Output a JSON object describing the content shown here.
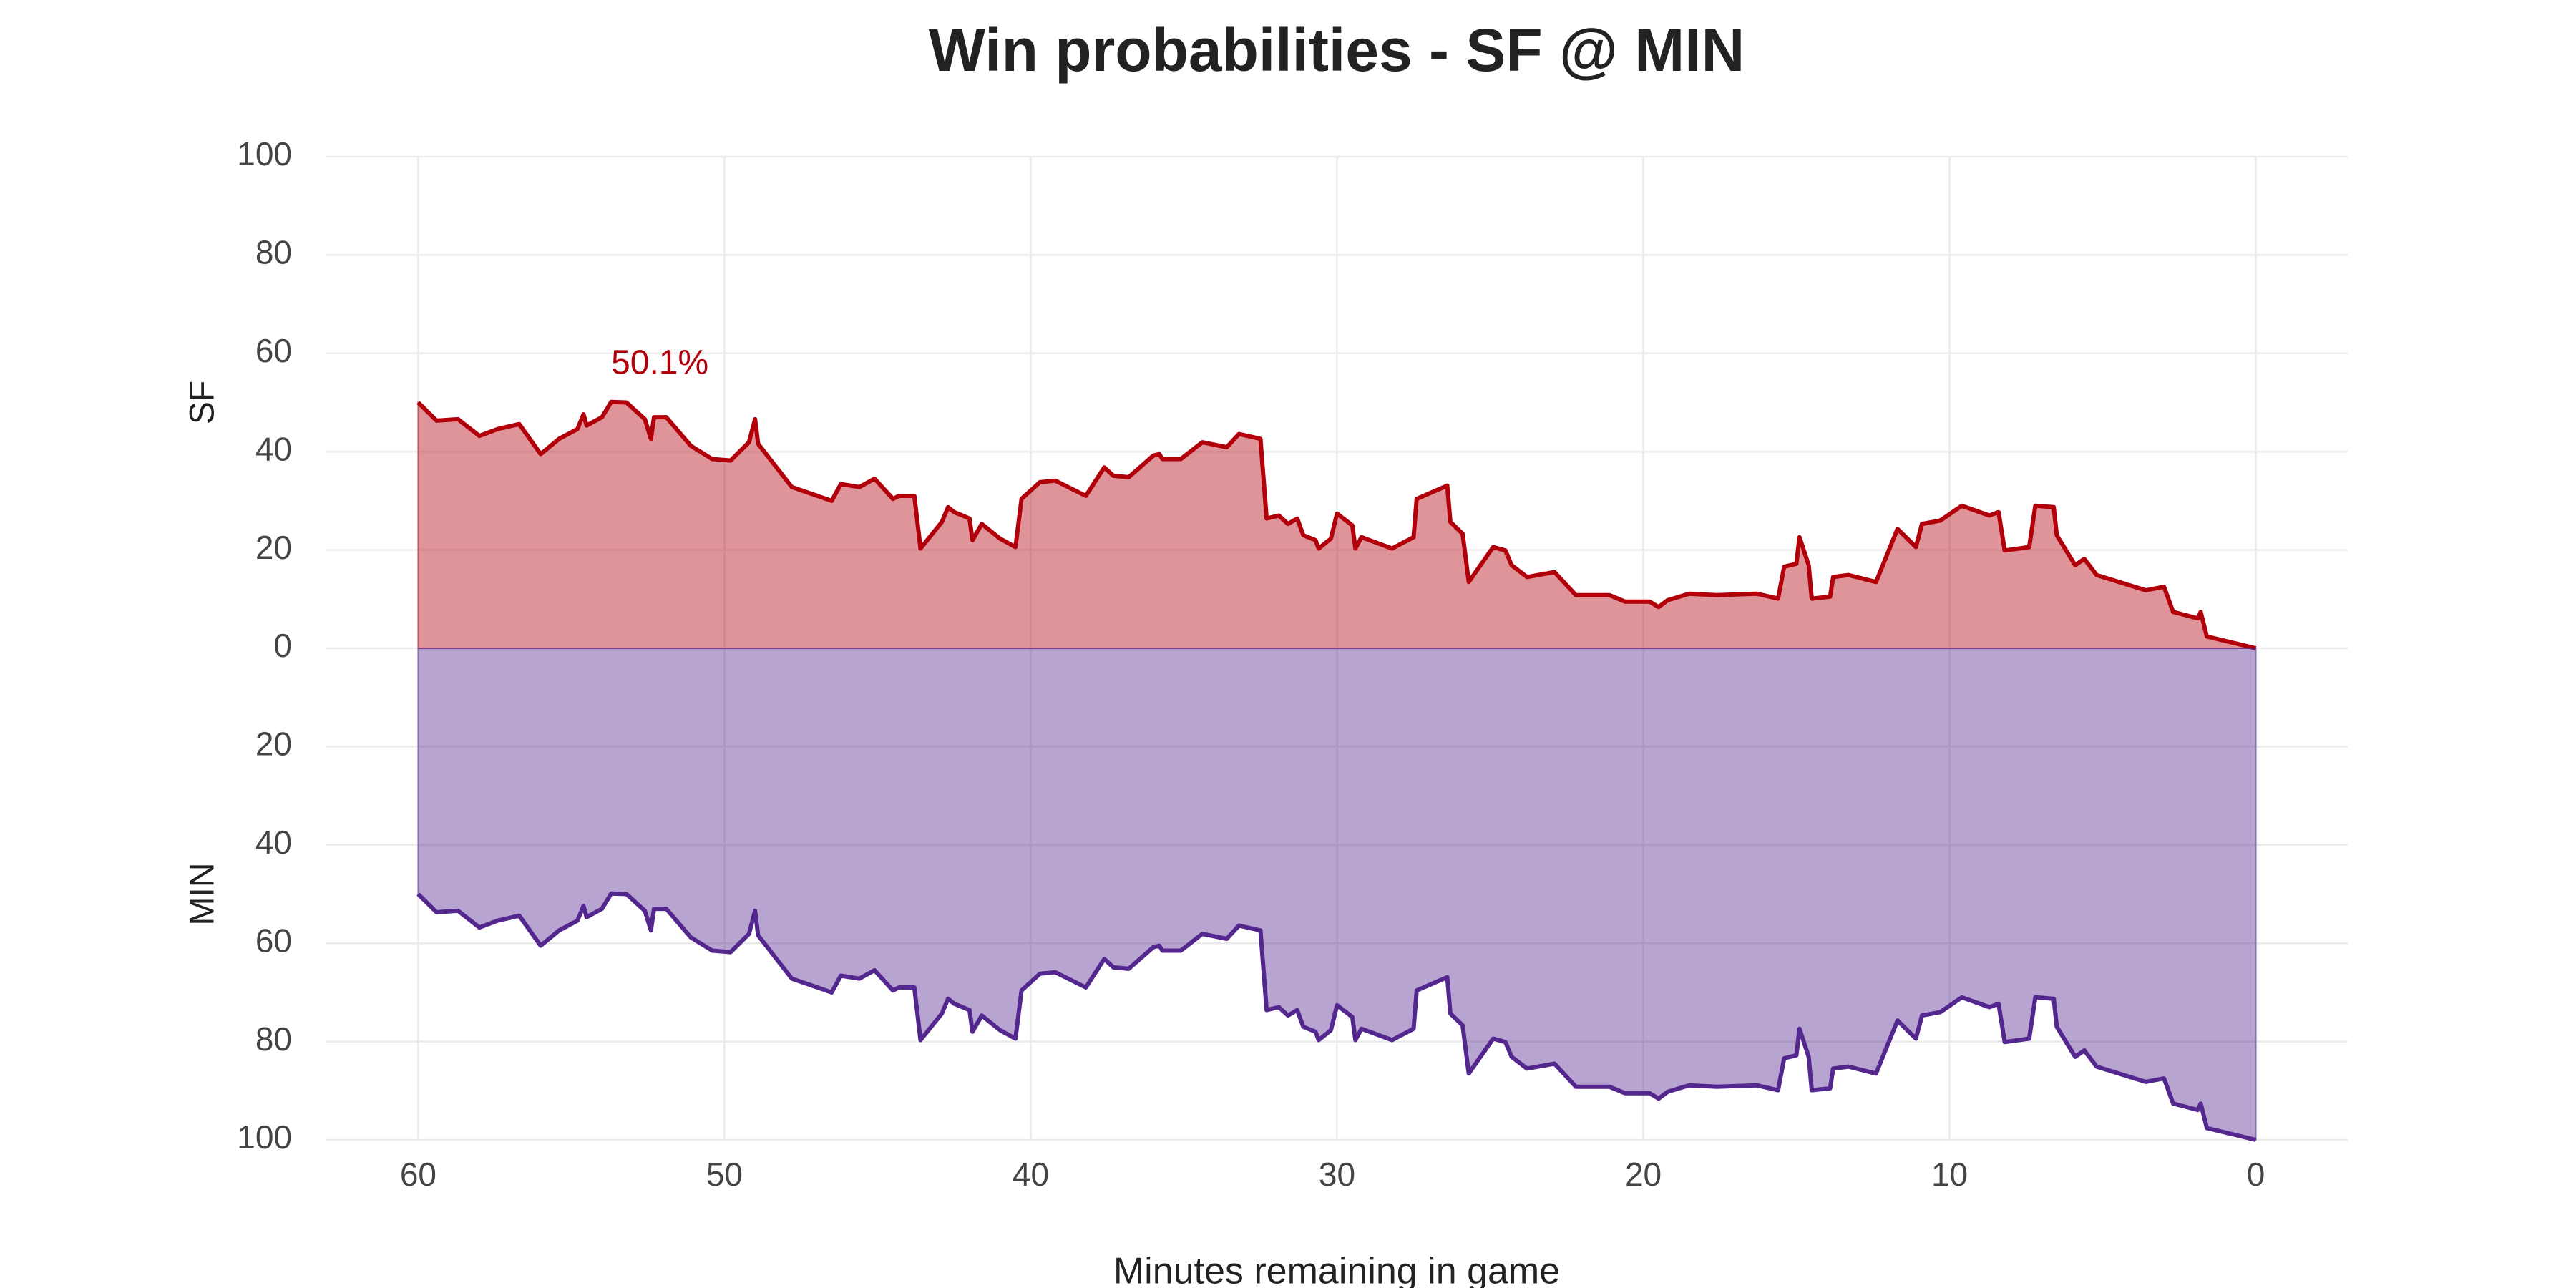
{
  "chart_data": {
    "type": "mirrored-area",
    "title": "Win probabilities - SF @ MIN",
    "xlabel": "Minutes remaining in game",
    "xlim": [
      63,
      -3
    ],
    "xticks": [
      60,
      50,
      40,
      30,
      20,
      10,
      0
    ],
    "ylim": [
      -100,
      100
    ],
    "yticks": [
      {
        "value": -100,
        "label": "100"
      },
      {
        "value": -80,
        "label": "80"
      },
      {
        "value": -60,
        "label": "60"
      },
      {
        "value": -40,
        "label": "40"
      },
      {
        "value": -20,
        "label": "20"
      },
      0,
      20,
      40,
      60,
      80,
      100
    ],
    "grid": true,
    "x": [
      60,
      59.4,
      58.7,
      58.0,
      57.4,
      56.7,
      56.0,
      55.4,
      54.8,
      54.6,
      54.5,
      54.0,
      53.9,
      53.7,
      53.2,
      52.6,
      52.4,
      52.3,
      51.9,
      51.1,
      50.4,
      49.8,
      49.2,
      49.0,
      48.9,
      47.8,
      46.5,
      46.2,
      45.6,
      45.1,
      44.5,
      44.3,
      43.8,
      43.6,
      42.9,
      42.7,
      42.5,
      42.0,
      41.9,
      41.6,
      41.0,
      40.5,
      40.3,
      39.7,
      39.2,
      38.2,
      37.6,
      37.3,
      36.8,
      36.0,
      35.8,
      35.7,
      35.1,
      34.4,
      33.6,
      33.2,
      32.5,
      32.3,
      31.9,
      31.6,
      31.3,
      31.1,
      30.7,
      30.6,
      30.2,
      30.0,
      29.5,
      29.4,
      29.2,
      28.2,
      27.5,
      27.4,
      26.4,
      26.3,
      25.9,
      25.7,
      24.9,
      24.5,
      24.3,
      23.8,
      22.9,
      22.2,
      21.1,
      20.6,
      19.8,
      19.5,
      19.2,
      18.5,
      17.6,
      16.3,
      15.6,
      15.4,
      15.0,
      14.9,
      14.6,
      14.5,
      13.9,
      13.8,
      13.3,
      12.4,
      11.7,
      11.1,
      10.9,
      10.3,
      9.6,
      8.7,
      8.4,
      8.2,
      7.4,
      7.2,
      6.6,
      6.5,
      5.9,
      5.6,
      5.2,
      3.6,
      3.0,
      2.7,
      1.9,
      1.8,
      1.6,
      0
    ],
    "series": [
      {
        "name": "SF",
        "color": "#b2000b",
        "mirrored": false,
        "values": [
          50,
          46.3,
          46.6,
          43.2,
          44.6,
          45.6,
          39.5,
          42.6,
          44.6,
          47.6,
          45.3,
          47,
          48,
          50.1,
          50,
          46.6,
          42.6,
          47,
          47,
          41.2,
          38.5,
          38.2,
          41.9,
          46.6,
          41.6,
          32.8,
          30,
          33.4,
          32.8,
          34.5,
          30.4,
          31,
          31,
          20.3,
          25.7,
          28.7,
          27.7,
          26.4,
          22,
          25.3,
          22.3,
          20.6,
          30.4,
          33.8,
          34.1,
          31,
          36.8,
          35.1,
          34.8,
          39.2,
          39.5,
          38.5,
          38.5,
          41.9,
          40.9,
          43.6,
          42.6,
          26.4,
          27,
          25.3,
          26.4,
          23,
          22,
          20.3,
          22.3,
          27.4,
          25,
          20.3,
          22.6,
          20.3,
          22.6,
          30.4,
          33.1,
          25.7,
          23.3,
          13.5,
          20.6,
          19.9,
          16.9,
          14.5,
          15.5,
          10.8,
          10.8,
          9.5,
          9.5,
          8.4,
          9.8,
          11.1,
          10.8,
          11.1,
          10.1,
          16.6,
          17.2,
          22.6,
          16.9,
          10.1,
          10.5,
          14.5,
          14.9,
          13.5,
          24.3,
          20.6,
          25.3,
          26,
          29,
          27,
          27.7,
          19.9,
          20.6,
          29,
          28.7,
          23,
          16.9,
          18.2,
          14.9,
          11.8,
          12.5,
          7.4,
          6.1,
          7.4,
          2.4,
          0
        ]
      },
      {
        "name": "MIN",
        "color": "#54278f",
        "mirrored": true,
        "values": [
          50,
          53.7,
          53.4,
          56.8,
          55.4,
          54.4,
          60.5,
          57.4,
          55.4,
          52.4,
          54.7,
          53,
          52,
          49.9,
          50,
          53.4,
          57.4,
          53,
          53,
          58.8,
          61.5,
          61.8,
          58.1,
          53.4,
          58.4,
          67.2,
          70,
          66.6,
          67.2,
          65.5,
          69.6,
          69,
          69,
          79.7,
          74.3,
          71.3,
          72.3,
          73.6,
          78,
          74.7,
          77.7,
          79.4,
          69.6,
          66.2,
          65.9,
          69,
          63.2,
          64.9,
          65.2,
          60.8,
          60.5,
          61.5,
          61.5,
          58.1,
          59.1,
          56.4,
          57.4,
          73.6,
          73,
          74.7,
          73.6,
          77,
          78,
          79.7,
          77.7,
          72.6,
          75,
          79.7,
          77.4,
          79.7,
          77.4,
          69.6,
          66.9,
          74.3,
          76.7,
          86.5,
          79.4,
          80.1,
          83.1,
          85.5,
          84.5,
          89.2,
          89.2,
          90.5,
          90.5,
          91.6,
          90.2,
          88.9,
          89.2,
          88.9,
          89.9,
          83.4,
          82.8,
          77.4,
          83.1,
          89.9,
          89.5,
          85.5,
          85.1,
          86.5,
          75.7,
          79.4,
          74.7,
          74,
          71,
          73,
          72.3,
          80.1,
          79.4,
          71,
          71.3,
          77,
          83.1,
          81.8,
          85.1,
          88.2,
          87.5,
          92.6,
          93.9,
          92.6,
          97.6,
          100
        ]
      }
    ],
    "annotations": [
      {
        "label": "50.1%",
        "value": 50.1
      }
    ]
  }
}
